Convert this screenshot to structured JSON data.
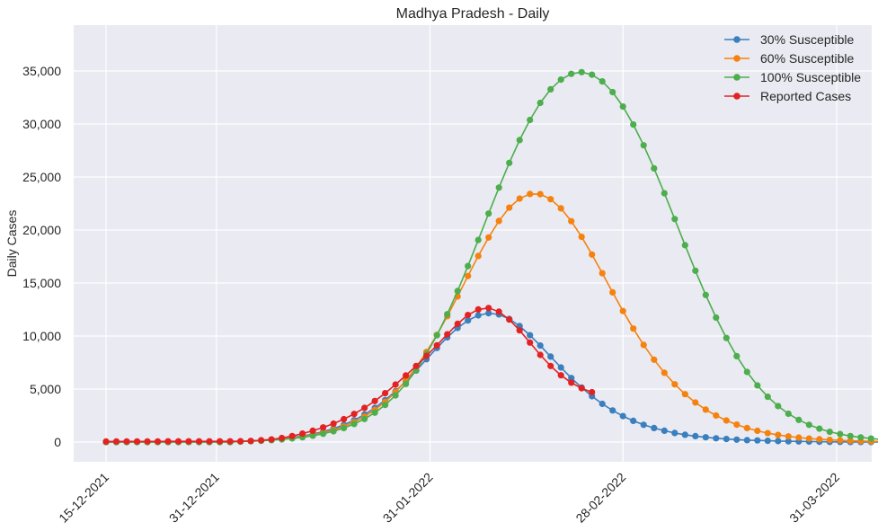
{
  "chart_data": {
    "type": "line",
    "title": "Madhya Pradesh - Daily",
    "ylabel": "Daily Cases",
    "xlabel": "",
    "x_start": "15-12-2021",
    "x_end": "31-03-2022",
    "x_step_days": 1.5,
    "xticks": [
      "15-12-2021",
      "31-12-2021",
      "31-01-2022",
      "28-02-2022",
      "31-03-2022"
    ],
    "yticks": [
      0,
      5000,
      10000,
      15000,
      20000,
      25000,
      30000,
      35000
    ],
    "ytick_labels": [
      "0",
      "5,000",
      "10,000",
      "15,000",
      "20,000",
      "25,000",
      "30,000",
      "35,000"
    ],
    "ylim": [
      -1800,
      39700
    ],
    "grid": true,
    "legend_position": "top-right",
    "series": [
      {
        "name": "30% Susceptible",
        "color": "#3a7fbe",
        "values": [
          0,
          0,
          0,
          0,
          0,
          0,
          0,
          0,
          0,
          0,
          0,
          0,
          0,
          50,
          100,
          150,
          230,
          320,
          430,
          570,
          750,
          980,
          1270,
          1620,
          2060,
          2590,
          3220,
          3960,
          4800,
          5740,
          6750,
          7810,
          8870,
          9870,
          10760,
          11470,
          11950,
          12150,
          12030,
          11610,
          10940,
          10080,
          9100,
          8060,
          7030,
          6040,
          5140,
          4320,
          3600,
          2980,
          2450,
          2000,
          1630,
          1320,
          1070,
          860,
          690,
          560,
          450,
          360,
          290,
          230,
          180,
          150,
          120,
          90,
          70,
          60,
          40,
          30,
          20,
          20,
          10,
          10,
          0,
          0,
          0,
          0,
          0,
          0,
          0,
          0,
          0,
          0,
          0,
          0,
          0,
          0,
          0,
          0,
          0,
          0,
          0,
          0,
          0,
          0,
          0,
          0,
          0,
          0,
          0,
          0,
          0,
          0,
          0,
          0,
          0,
          0,
          0,
          0,
          0
        ]
      },
      {
        "name": "60% Susceptible",
        "color": "#f5820f",
        "values": [
          0,
          0,
          0,
          0,
          0,
          0,
          0,
          0,
          0,
          0,
          0,
          0,
          0,
          50,
          90,
          140,
          200,
          280,
          380,
          510,
          670,
          880,
          1140,
          1470,
          1890,
          2400,
          3030,
          3790,
          4710,
          5790,
          7050,
          8500,
          10110,
          11870,
          13740,
          15660,
          17550,
          19300,
          20860,
          22110,
          22970,
          23400,
          23380,
          22910,
          22040,
          20830,
          19360,
          17690,
          15920,
          14120,
          12360,
          10700,
          9160,
          7770,
          6530,
          5450,
          4520,
          3730,
          3060,
          2500,
          2030,
          1640,
          1320,
          1060,
          840,
          670,
          530,
          420,
          330,
          260,
          200,
          160,
          120,
          90,
          70,
          60,
          40,
          30,
          20,
          20,
          10,
          10,
          0,
          0,
          0,
          0,
          0,
          0,
          0,
          0,
          0,
          0,
          0,
          0,
          0,
          0,
          0,
          0,
          0,
          0,
          0,
          0,
          0,
          0,
          0,
          0,
          0,
          0,
          0
        ]
      },
      {
        "name": "100% Susceptible",
        "color": "#4cae4c",
        "values": [
          0,
          0,
          0,
          0,
          0,
          0,
          0,
          0,
          0,
          0,
          0,
          0,
          0,
          40,
          80,
          120,
          180,
          250,
          340,
          450,
          600,
          780,
          1020,
          1320,
          1700,
          2180,
          2770,
          3500,
          4400,
          5480,
          6780,
          8310,
          10070,
          12060,
          14250,
          16600,
          19060,
          21550,
          24000,
          26330,
          28480,
          30380,
          31990,
          33270,
          34190,
          34730,
          34890,
          34650,
          34020,
          33010,
          31640,
          29950,
          27990,
          25810,
          23470,
          21030,
          18570,
          16160,
          13870,
          11740,
          9810,
          8100,
          6610,
          5340,
          4270,
          3390,
          2670,
          2090,
          1630,
          1260,
          970,
          750,
          570,
          440,
          330,
          250,
          190,
          140,
          100,
          80,
          60,
          40,
          30,
          20,
          20,
          10,
          10,
          0,
          0,
          0,
          0,
          0,
          0,
          0,
          0,
          0,
          0,
          0,
          0,
          0,
          0,
          0,
          0,
          0,
          0,
          0,
          0
        ]
      },
      {
        "name": "Reported Cases",
        "color": "#e32222",
        "values": [
          50,
          60,
          60,
          60,
          60,
          60,
          70,
          70,
          70,
          70,
          70,
          70,
          70,
          80,
          100,
          170,
          250,
          380,
          570,
          800,
          1070,
          1380,
          1740,
          2160,
          2650,
          3220,
          3870,
          4610,
          5420,
          6280,
          7180,
          8130,
          9130,
          10160,
          11150,
          11980,
          12510,
          12640,
          12300,
          11550,
          10530,
          9380,
          8220,
          7180,
          6300,
          5600,
          5080,
          4700
        ]
      }
    ]
  }
}
